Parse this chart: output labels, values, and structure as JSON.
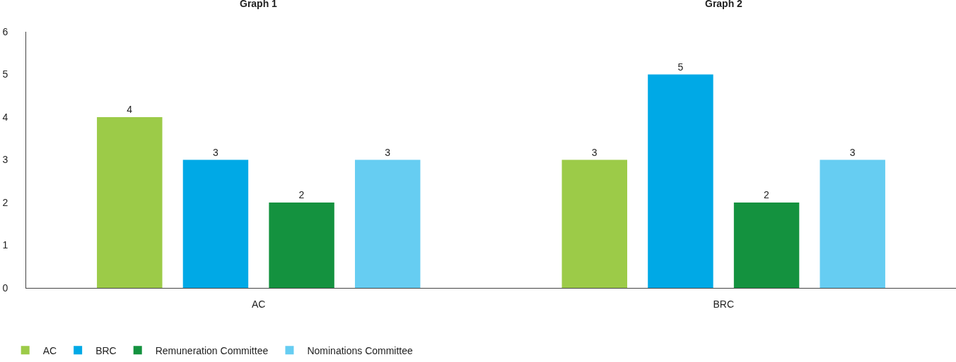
{
  "chart_data": {
    "type": "bar",
    "categories": [
      "AC",
      "BRC"
    ],
    "series": [
      {
        "name": "AC",
        "color": "#9ccb48",
        "values": [
          4,
          3
        ]
      },
      {
        "name": "BRC",
        "color": "#00a9e6",
        "values": [
          3,
          5
        ]
      },
      {
        "name": "Remuneration Committee",
        "color": "#14923f",
        "values": [
          2,
          2
        ]
      },
      {
        "name": "Nominations Committee",
        "color": "#66cdf2",
        "values": [
          3,
          3
        ]
      }
    ],
    "annotations": [
      "Graph 1",
      "Graph 2"
    ],
    "ylim": [
      0,
      6
    ],
    "yticks": [
      0,
      1,
      2,
      3,
      4,
      5,
      6
    ],
    "grid": false,
    "data_labels": true,
    "legend": "bottom left"
  }
}
